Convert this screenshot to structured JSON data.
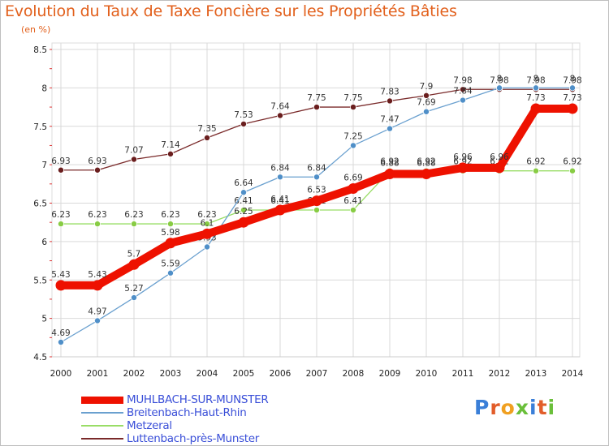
{
  "title": "Evolution du Taux de Taxe Foncière sur les Propriétés Bâties",
  "unit_label": "(en %)",
  "brand": "Proxiti",
  "colors": {
    "title": "#e2601c",
    "muhlbach": "#ee1100",
    "breitenbach": "#6aa0cf",
    "metzeral": "#99dd66",
    "luttenbach": "#7a2a2a",
    "grid": "#d9d9d9",
    "legend_text": "#3a4fd8"
  },
  "chart_data": {
    "type": "line",
    "title": "Evolution du Taux de Taxe Foncière sur les Propriétés Bâties",
    "ylabel": "(en %)",
    "xlabel": "",
    "ylim": [
      4.5,
      8.5
    ],
    "yticks": [
      "4.5",
      "5",
      "5.5",
      "6",
      "6.5",
      "7",
      "7.5",
      "8",
      "8.5"
    ],
    "categories": [
      "2000",
      "2001",
      "2002",
      "2003",
      "2004",
      "2005",
      "2006",
      "2007",
      "2008",
      "2009",
      "2010",
      "2011",
      "2012",
      "2013",
      "2014"
    ],
    "series": [
      {
        "key": "luttenbach",
        "name": "Luttenbach-près-Munster",
        "values": [
          6.93,
          6.93,
          7.07,
          7.14,
          7.35,
          7.53,
          7.64,
          7.75,
          7.75,
          7.83,
          7.9,
          7.98,
          7.98,
          7.98,
          7.98
        ],
        "labels": [
          "6.93",
          "6.93",
          "7.07",
          "7.14",
          "7.35",
          "7.53",
          "7.64",
          "7.75",
          "7.75",
          "7.83",
          "7.9",
          "7.98",
          "7.98",
          "7.98",
          "7.98"
        ]
      },
      {
        "key": "metzeral",
        "name": "Metzeral",
        "values": [
          6.23,
          6.23,
          6.23,
          6.23,
          6.23,
          6.41,
          6.41,
          6.41,
          6.41,
          6.92,
          6.92,
          6.92,
          6.92,
          6.92,
          6.92
        ],
        "labels": [
          "6.23",
          "6.23",
          "6.23",
          "6.23",
          "6.23",
          "6.41",
          "6.41",
          "6.41",
          "6.41",
          "6.92",
          "6.92",
          "6.92",
          "6.92",
          "6.92",
          "6.92"
        ]
      },
      {
        "key": "breitenbach",
        "name": "Breitenbach-Haut-Rhin",
        "values": [
          4.69,
          4.97,
          5.27,
          5.59,
          5.93,
          6.64,
          6.84,
          6.84,
          7.25,
          7.47,
          7.69,
          7.84,
          8.0,
          8.0,
          8.0
        ],
        "labels": [
          "4.69",
          "4.97",
          "5.27",
          "5.59",
          "5.93",
          "6.64",
          "6.84",
          "6.84",
          "7.25",
          "7.47",
          "7.69",
          "7.84",
          "8",
          "8",
          "8"
        ]
      },
      {
        "key": "muhlbach",
        "name": "MUHLBACH-SUR-MUNSTER",
        "values": [
          5.43,
          5.43,
          5.7,
          5.98,
          6.1,
          6.25,
          6.41,
          6.53,
          6.69,
          6.88,
          6.88,
          6.96,
          6.96,
          7.73,
          7.73
        ],
        "labels": [
          "5.43",
          "5.43",
          "5.7",
          "5.98",
          "6.1",
          "6.25",
          "6.41",
          "6.53",
          "6.69",
          "6.88",
          "6.88",
          "6.96",
          "6.96",
          "7.73",
          "7.73"
        ]
      }
    ],
    "legend_order": [
      "MUHLBACH-SUR-MUNSTER",
      "Breitenbach-Haut-Rhin",
      "Metzeral",
      "Luttenbach-près-Munster"
    ],
    "legend_position": "bottom-left",
    "grid": true
  }
}
